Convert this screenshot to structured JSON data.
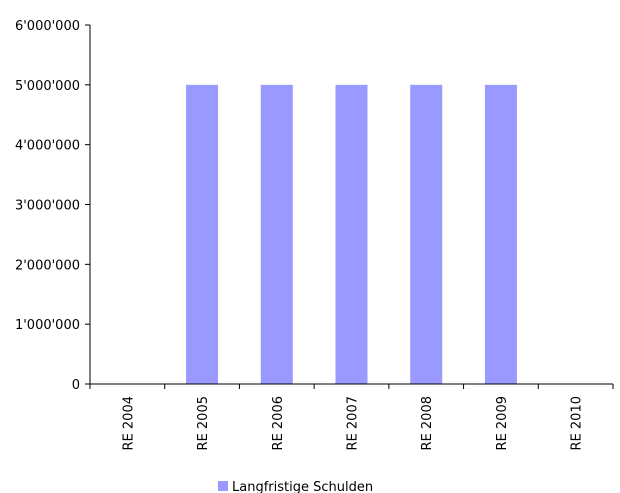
{
  "chart_data": {
    "type": "bar",
    "categories": [
      "RE 2004",
      "RE 2005",
      "RE 2006",
      "RE 2007",
      "RE 2008",
      "RE 2009",
      "RE 2010"
    ],
    "series": [
      {
        "name": "Langfristige Schulden",
        "values": [
          0,
          5000000,
          5000000,
          5000000,
          5000000,
          5000000,
          0
        ],
        "color": "#9999ff"
      }
    ],
    "ylim": [
      0,
      6000000
    ],
    "yticks": [
      0,
      1000000,
      2000000,
      3000000,
      4000000,
      5000000,
      6000000
    ],
    "ytick_labels": [
      "0",
      "1'000'000",
      "2'000'000",
      "3'000'000",
      "4'000'000",
      "5'000'000",
      "6'000'000"
    ],
    "grid": false,
    "legend_position": "bottom"
  }
}
